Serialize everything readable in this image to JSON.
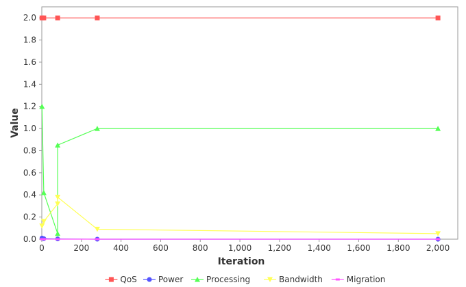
{
  "chart_data": {
    "type": "line",
    "title": "",
    "xlabel": "Iteration",
    "ylabel": "Value",
    "xlim": [
      0,
      2100
    ],
    "ylim": [
      0,
      2.1
    ],
    "grid": false,
    "legend": "bottom",
    "x_ticks": [
      0,
      200,
      400,
      600,
      800,
      1000,
      1200,
      1400,
      1600,
      1800,
      2000
    ],
    "x_tick_labels": [
      "0",
      "200",
      "400",
      "600",
      "800",
      "1,000",
      "1,200",
      "1,400",
      "1,600",
      "1,800",
      "2,000"
    ],
    "y_ticks": [
      0,
      0.2,
      0.4,
      0.6,
      0.8,
      1.0,
      1.2,
      1.4,
      1.6,
      1.8,
      2.0
    ],
    "y_tick_labels": [
      "0.0",
      "0.2",
      "0.4",
      "0.6",
      "0.8",
      "1.0",
      "1.2",
      "1.4",
      "1.6",
      "1.8",
      "2.0"
    ],
    "series": [
      {
        "name": "QoS",
        "color": "#ff5555",
        "marker": "square",
        "x": [
          1,
          10,
          80,
          280,
          2000
        ],
        "y": [
          2.0,
          2.0,
          2.0,
          2.0,
          2.0
        ]
      },
      {
        "name": "Power",
        "color": "#5555ff",
        "marker": "circle",
        "x": [
          1,
          10,
          80,
          280,
          2000
        ],
        "y": [
          0.01,
          0.005,
          0.002,
          0.0,
          0.0
        ]
      },
      {
        "name": "Processing",
        "color": "#55ff55",
        "marker": "triangle-up",
        "x": [
          1,
          10,
          80,
          80,
          280,
          2000
        ],
        "y": [
          1.2,
          0.42,
          0.05,
          0.85,
          1.0,
          1.0
        ]
      },
      {
        "name": "Bandwidth",
        "color": "#ffff55",
        "marker": "triangle-down",
        "x": [
          1,
          10,
          80,
          80,
          280,
          2000
        ],
        "y": [
          0.12,
          0.16,
          0.32,
          0.38,
          0.09,
          0.05
        ]
      },
      {
        "name": "Migration",
        "color": "#ff55ff",
        "marker": "square-small",
        "x": [
          1,
          10,
          80,
          280,
          2000
        ],
        "y": [
          0.0,
          0.0,
          0.0,
          0.0,
          0.0
        ]
      }
    ]
  }
}
